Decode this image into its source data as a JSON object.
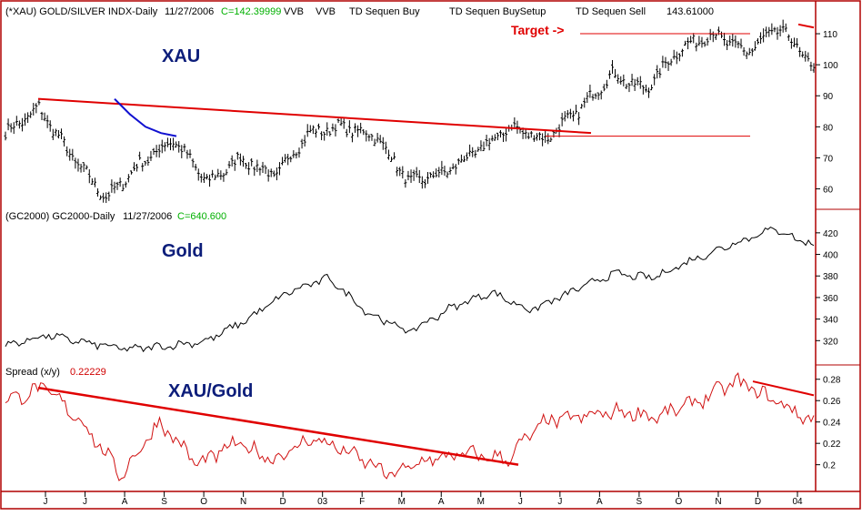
{
  "colors": {
    "background": "#ffffff",
    "frame": "#b00000",
    "bars": "#000000",
    "trendline": "#e00000",
    "ma_line": "#1010d0",
    "gold_line": "#000000",
    "spread_line": "#d01010",
    "title_blue": "#0c1d7a",
    "value_green": "#00b000",
    "value_red": "#d00000"
  },
  "header_xau": {
    "symbol": "(*XAU) GOLD/SILVER INDX-Daily",
    "date": "11/27/2006",
    "close": "C=142.39999",
    "ind1": "VVB",
    "ind2": "VVB",
    "ind3": "TD Sequen Buy",
    "ind4": "TD Sequen BuySetup",
    "ind5": "TD Sequen Sell",
    "ind6": "143.61000"
  },
  "header_gold": {
    "symbol": "(GC2000) GC2000-Daily",
    "date": "11/27/2006",
    "close": "C=640.600"
  },
  "header_spread": {
    "label": "Spread (x/y)",
    "value": "0.22229"
  },
  "labels": {
    "xau": "XAU",
    "gold": "Gold",
    "ratio": "XAU/Gold",
    "target": "Target ->"
  },
  "chart_data": [
    {
      "type": "bar",
      "subtype": "ohlc",
      "title": "XAU",
      "ylim": [
        54,
        115
      ],
      "y_ticks": [
        60,
        70,
        80,
        90,
        100,
        110
      ],
      "x_ticks": [
        "J",
        "J",
        "A",
        "S",
        "O",
        "N",
        "D",
        "03",
        "F",
        "M",
        "A",
        "M",
        "J",
        "J",
        "A",
        "S",
        "O",
        "N",
        "D",
        "04"
      ],
      "approx_close_path": [
        {
          "month": "Jun",
          "value": 78
        },
        {
          "month": "Jul",
          "value": 86
        },
        {
          "month": "Jul",
          "value": 70
        },
        {
          "month": "Aug",
          "value": 57
        },
        {
          "month": "Aug",
          "value": 68
        },
        {
          "month": "Sep",
          "value": 76
        },
        {
          "month": "Oct",
          "value": 62
        },
        {
          "month": "Nov",
          "value": 70
        },
        {
          "month": "Dec",
          "value": 64
        },
        {
          "month": "Dec",
          "value": 78
        },
        {
          "month": "Jan",
          "value": 80
        },
        {
          "month": "Feb",
          "value": 77
        },
        {
          "month": "Mar",
          "value": 62
        },
        {
          "month": "Apr",
          "value": 65
        },
        {
          "month": "May",
          "value": 72
        },
        {
          "month": "Jun",
          "value": 80
        },
        {
          "month": "Jul",
          "value": 76
        },
        {
          "month": "Aug",
          "value": 85
        },
        {
          "month": "Sep",
          "value": 97
        },
        {
          "month": "Oct",
          "value": 92
        },
        {
          "month": "Nov",
          "value": 105
        },
        {
          "month": "Dec",
          "value": 110
        },
        {
          "month": "Dec",
          "value": 104
        },
        {
          "month": "Jan",
          "value": 112
        },
        {
          "month": "Jan",
          "value": 99
        }
      ],
      "trendline": {
        "start": 89,
        "end": 78
      },
      "resistance_level": 77,
      "target_level": 110,
      "ma_segment": [
        89,
        84,
        80,
        78,
        77
      ]
    },
    {
      "type": "line",
      "title": "Gold",
      "ylim": [
        300,
        430
      ],
      "y_ticks": [
        320,
        340,
        360,
        380,
        400,
        420
      ],
      "approx_path": [
        {
          "month": "Jun",
          "value": 315
        },
        {
          "month": "Jul",
          "value": 325
        },
        {
          "month": "Aug",
          "value": 318
        },
        {
          "month": "Sep",
          "value": 312
        },
        {
          "month": "Oct",
          "value": 315
        },
        {
          "month": "Nov",
          "value": 320
        },
        {
          "month": "Dec",
          "value": 340
        },
        {
          "month": "Jan",
          "value": 365
        },
        {
          "month": "Feb",
          "value": 378
        },
        {
          "month": "Mar",
          "value": 345
        },
        {
          "month": "Apr",
          "value": 328
        },
        {
          "month": "May",
          "value": 350
        },
        {
          "month": "Jun",
          "value": 365
        },
        {
          "month": "Jul",
          "value": 348
        },
        {
          "month": "Aug",
          "value": 365
        },
        {
          "month": "Sep",
          "value": 382
        },
        {
          "month": "Oct",
          "value": 378
        },
        {
          "month": "Nov",
          "value": 395
        },
        {
          "month": "Dec",
          "value": 410
        },
        {
          "month": "Jan",
          "value": 424
        },
        {
          "month": "Jan",
          "value": 408
        }
      ]
    },
    {
      "type": "line",
      "title": "XAU/Gold",
      "ylim": [
        0.175,
        0.29
      ],
      "y_ticks": [
        0.2,
        0.22,
        0.24,
        0.26,
        0.28
      ],
      "approx_path": [
        {
          "month": "Jun",
          "value": 0.26
        },
        {
          "month": "Jun",
          "value": 0.272
        },
        {
          "month": "Jul",
          "value": 0.24
        },
        {
          "month": "Aug",
          "value": 0.19
        },
        {
          "month": "Sep",
          "value": 0.24
        },
        {
          "month": "Oct",
          "value": 0.2
        },
        {
          "month": "Nov",
          "value": 0.22
        },
        {
          "month": "Dec",
          "value": 0.205
        },
        {
          "month": "Jan",
          "value": 0.225
        },
        {
          "month": "Feb",
          "value": 0.21
        },
        {
          "month": "Mar",
          "value": 0.19
        },
        {
          "month": "Apr",
          "value": 0.205
        },
        {
          "month": "May",
          "value": 0.21
        },
        {
          "month": "Jun",
          "value": 0.205
        },
        {
          "month": "Jul",
          "value": 0.24
        },
        {
          "month": "Aug",
          "value": 0.245
        },
        {
          "month": "Sep",
          "value": 0.25
        },
        {
          "month": "Oct",
          "value": 0.245
        },
        {
          "month": "Nov",
          "value": 0.26
        },
        {
          "month": "Dec",
          "value": 0.278
        },
        {
          "month": "Jan",
          "value": 0.26
        },
        {
          "month": "Jan",
          "value": 0.24
        }
      ],
      "trendline_left": {
        "start": 0.272,
        "end": 0.2
      },
      "trendline_right": {
        "start": 0.278,
        "end": 0.265
      }
    }
  ]
}
